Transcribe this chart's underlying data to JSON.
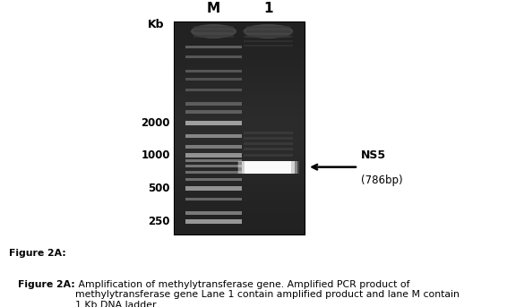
{
  "fig_width": 5.66,
  "fig_height": 3.43,
  "dpi": 100,
  "label_M": "M",
  "label_1": "1",
  "kb_label": "Kb",
  "marker_bands_bp": [
    10000,
    8000,
    6000,
    5000,
    4000,
    3000,
    2500,
    2000,
    1500,
    1200,
    1000,
    900,
    800,
    700,
    600,
    500,
    400,
    300,
    250
  ],
  "bp_axis_labels": [
    250,
    500,
    1000,
    2000
  ],
  "sample_band_bp": 786,
  "annotation_line1": "NS5",
  "annotation_line2": "(786bp)",
  "caption_bold": "Figure 2A:",
  "caption_normal": " Amplification of methylytransferase gene. Amplified PCR product of\nmethylytransferase gene Lane 1 contain amplified product and lane M contain\n1 Kb DNA ladder.",
  "gel_gray_bg": "#2a2a2a",
  "gel_dark_bg": "#111111",
  "band_color_bright": "#e0e0e0",
  "band_color_mid": "#aaaaaa",
  "band_color_dim": "#666666"
}
